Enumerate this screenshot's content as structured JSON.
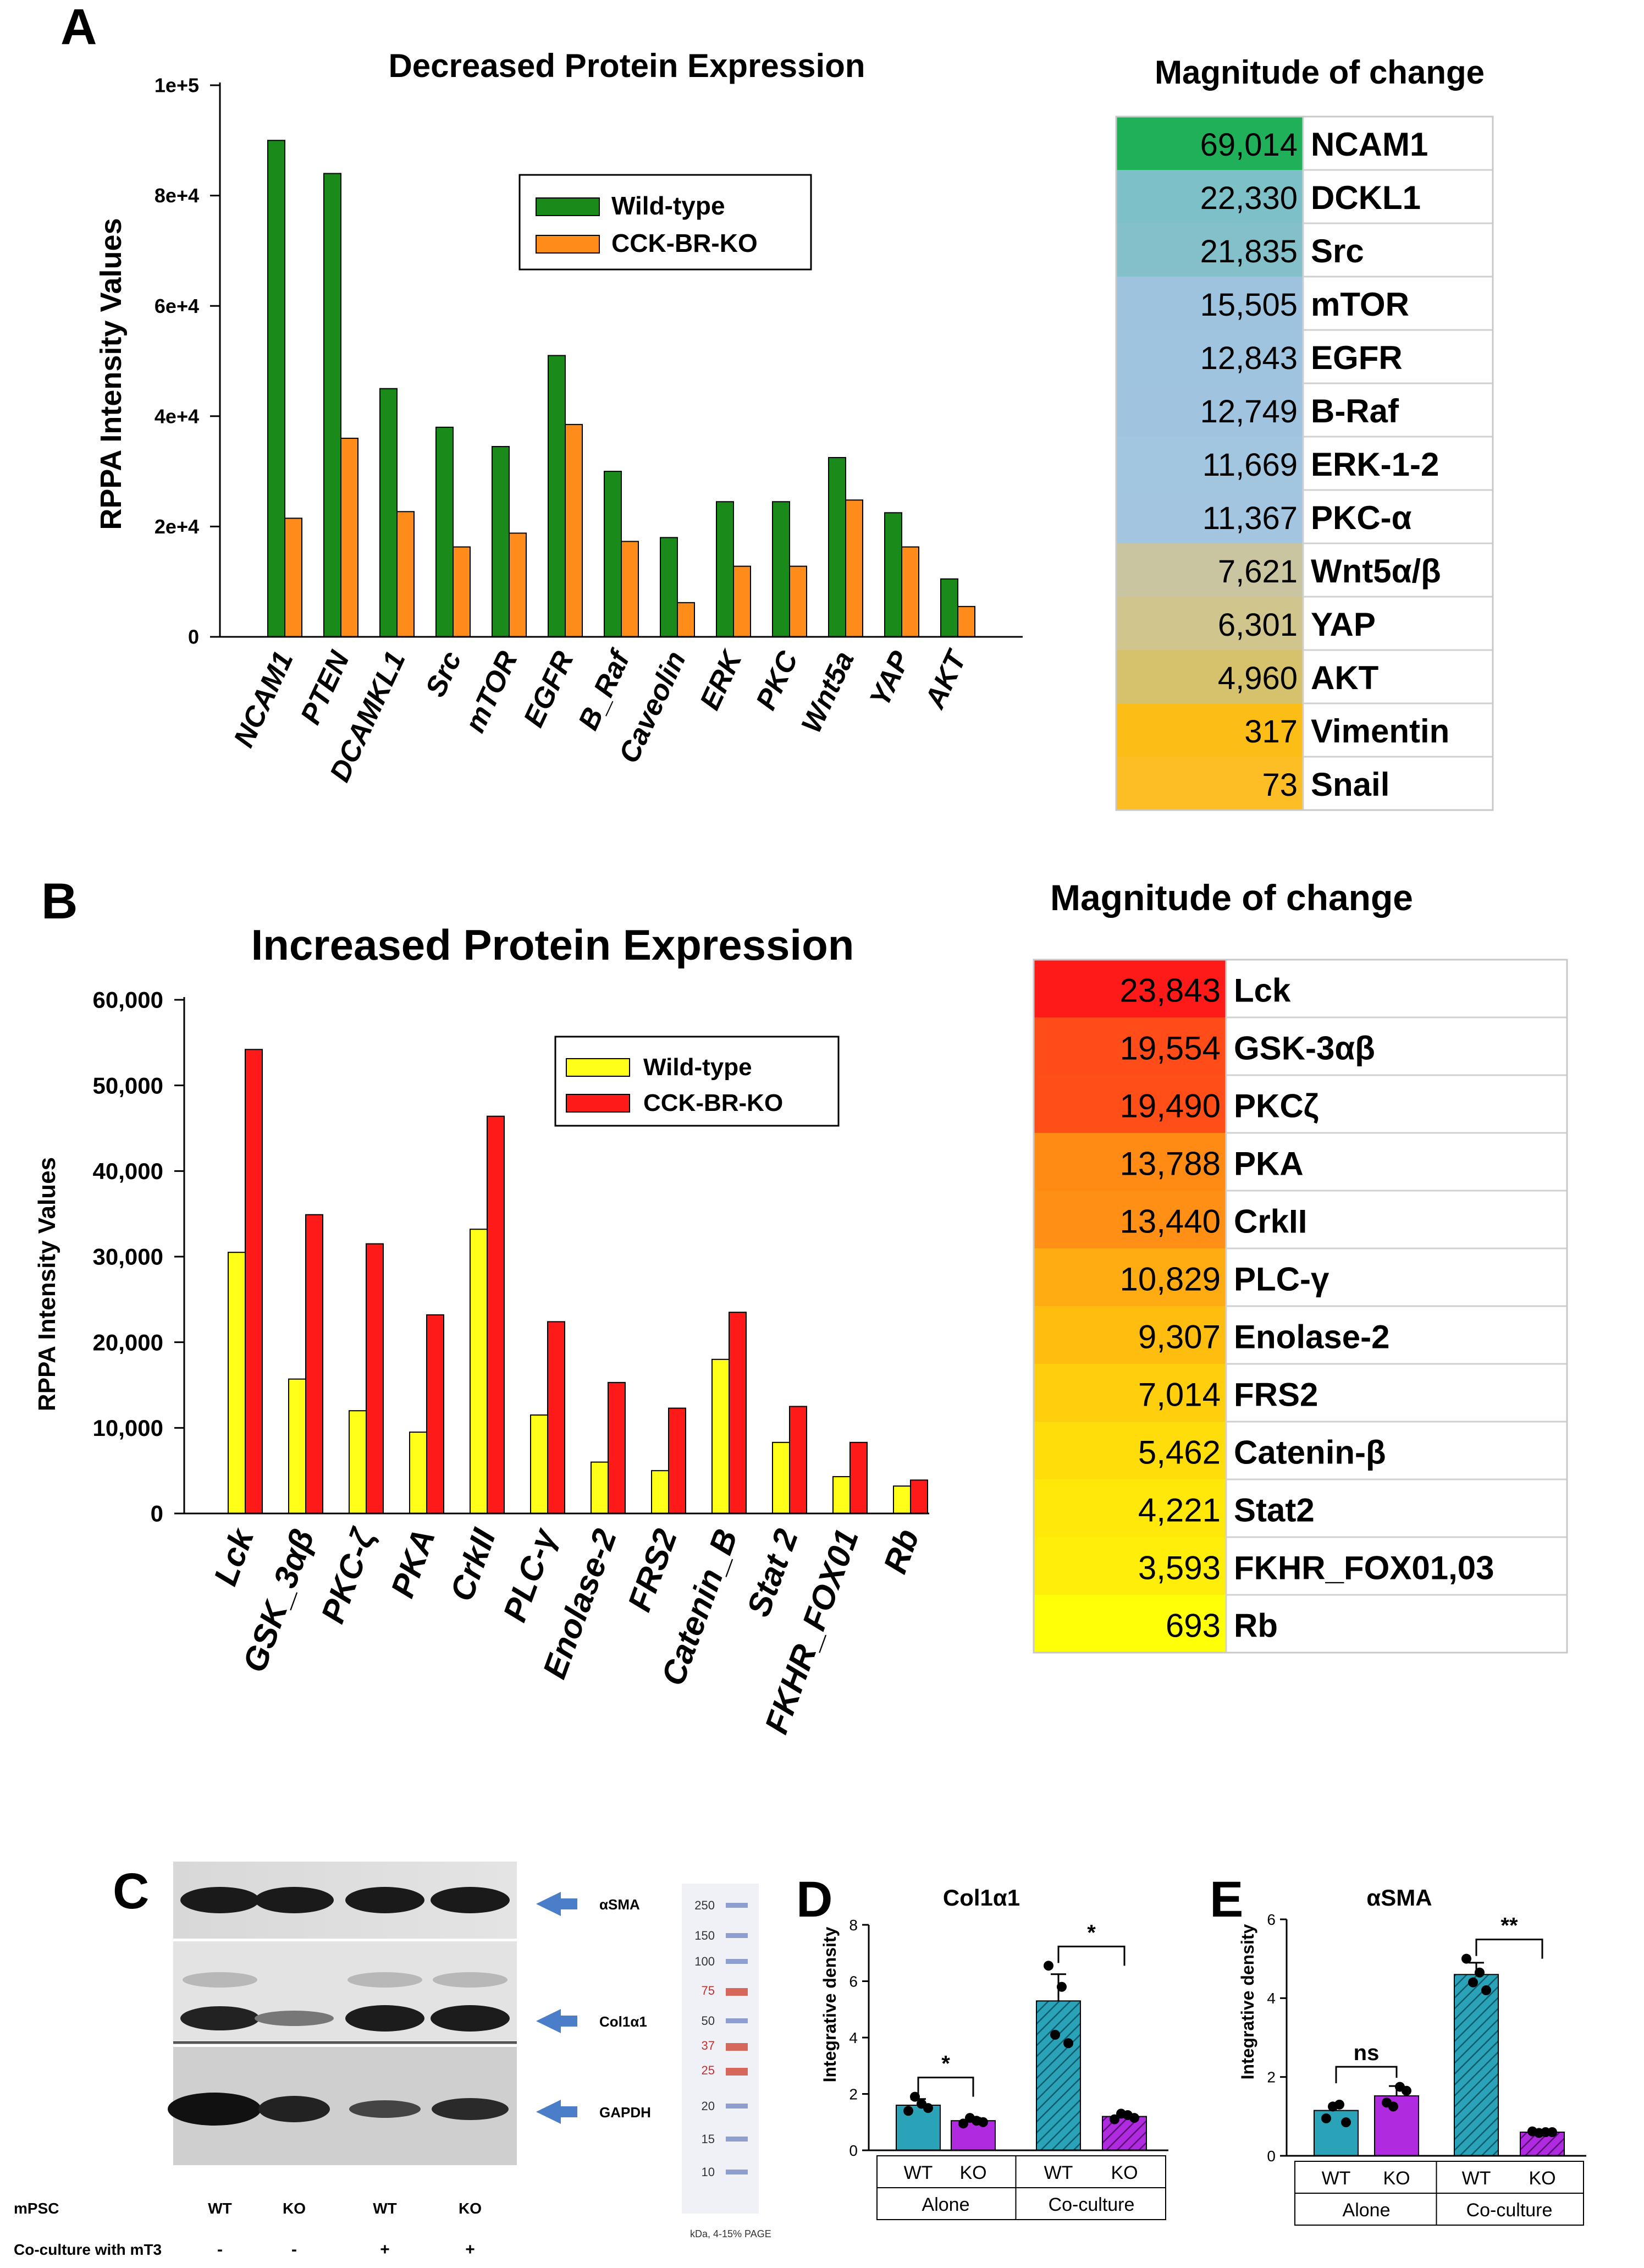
{
  "panels": {
    "a": "A",
    "b": "B",
    "c": "C",
    "d": "D",
    "e": "E"
  },
  "chart_data": [
    {
      "id": "A",
      "type": "bar",
      "title": "Decreased Protein Expression",
      "xlabel": "",
      "ylabel": "RPPA Intensity Values",
      "ylim": [
        0,
        100000
      ],
      "yticks": [
        "0",
        "2e+4",
        "4e+4",
        "6e+4",
        "8e+4",
        "1e+5"
      ],
      "ytick_values": [
        0,
        20000,
        40000,
        60000,
        80000,
        100000
      ],
      "legend_position": "top-right",
      "categories": [
        "NCAM1",
        "PTEN",
        "DCAMKL1",
        "Src",
        "mTOR",
        "EGFR",
        "B_Raf",
        "Caveolin",
        "ERK",
        "PKC",
        "Wnt5a",
        "YAP",
        "AKT"
      ],
      "series": [
        {
          "name": "Wild-type",
          "color": "#1a8a1a",
          "values": [
            90000,
            84000,
            45000,
            38000,
            34500,
            51000,
            30000,
            18000,
            24500,
            24500,
            32500,
            22500,
            10500
          ]
        },
        {
          "name": "CCK-BR-KO",
          "color": "#ff8c1a",
          "values": [
            21500,
            36000,
            22700,
            16300,
            18800,
            38500,
            17300,
            6200,
            12800,
            12800,
            24800,
            16300,
            5500
          ]
        }
      ]
    },
    {
      "id": "B",
      "type": "bar",
      "title": "Increased Protein Expression",
      "xlabel": "",
      "ylabel": "RPPA Intensity Values",
      "ylim": [
        0,
        60000
      ],
      "yticks": [
        "0",
        "10,000",
        "20,000",
        "30,000",
        "40,000",
        "50,000",
        "60,000"
      ],
      "ytick_values": [
        0,
        10000,
        20000,
        30000,
        40000,
        50000,
        60000
      ],
      "legend_position": "top-right",
      "categories": [
        "Lck",
        "GSK_3αβ",
        "PKC-ζ",
        "PKA",
        "CrkII",
        "PLC-γ",
        "Enolase-2",
        "FRS2",
        "Catenin_B",
        "Stat 2",
        "FKHR_FOX01",
        "Rb"
      ],
      "series": [
        {
          "name": "Wild-type",
          "color": "#ffff1a",
          "values": [
            30500,
            15700,
            12000,
            9500,
            33200,
            11500,
            6000,
            5000,
            18000,
            8300,
            4300,
            3200
          ]
        },
        {
          "name": "CCK-BR-KO",
          "color": "#ff1a1a",
          "values": [
            54200,
            34900,
            31500,
            23200,
            46400,
            22400,
            15300,
            12300,
            23500,
            12500,
            8300,
            3900
          ]
        }
      ]
    },
    {
      "id": "D",
      "type": "bar",
      "title": "Col1α1",
      "ylabel": "Integrative density",
      "ylim": [
        0,
        8
      ],
      "yticks": [
        "0",
        "2",
        "4",
        "6",
        "8"
      ],
      "ytick_values": [
        0,
        2,
        4,
        6,
        8
      ],
      "categories": [
        "WT",
        "KO",
        "WT",
        "KO"
      ],
      "groups": [
        "Alone",
        "Co-culture"
      ],
      "values": [
        1.6,
        1.05,
        5.3,
        1.2
      ],
      "errors": [
        0.22,
        0.1,
        0.95,
        0.1
      ],
      "points": [
        [
          1.4,
          1.65,
          1.9,
          1.5
        ],
        [
          0.95,
          1.05,
          1.15,
          1.0
        ],
        [
          6.55,
          5.8,
          4.1,
          3.8
        ],
        [
          1.1,
          1.25,
          1.3,
          1.15
        ]
      ],
      "colors": [
        "#2aa3b8",
        "#b02ae0",
        "#2aa3b8",
        "#b02ae0"
      ],
      "hatched": [
        false,
        false,
        true,
        true
      ],
      "significance": [
        {
          "pair": [
            0,
            1
          ],
          "label": "*"
        },
        {
          "pair": [
            2,
            3
          ],
          "label": "*"
        }
      ]
    },
    {
      "id": "E",
      "type": "bar",
      "title": "αSMA",
      "ylabel": "Integrative density",
      "ylim": [
        0,
        6
      ],
      "yticks": [
        "0",
        "2",
        "4",
        "6"
      ],
      "ytick_values": [
        0,
        2,
        4,
        6
      ],
      "categories": [
        "WT",
        "KO",
        "WT",
        "KO"
      ],
      "groups": [
        "Alone",
        "Co-culture"
      ],
      "values": [
        1.15,
        1.52,
        4.6,
        0.6
      ],
      "errors": [
        0.15,
        0.25,
        0.3,
        0.05
      ],
      "points": [
        [
          0.95,
          1.3,
          1.25,
          0.85
        ],
        [
          1.35,
          1.75,
          1.25,
          1.65
        ],
        [
          5.0,
          4.65,
          4.4,
          4.2
        ],
        [
          0.62,
          0.6,
          0.58,
          0.6
        ]
      ],
      "colors": [
        "#2aa3b8",
        "#b02ae0",
        "#2aa3b8",
        "#b02ae0"
      ],
      "hatched": [
        false,
        false,
        true,
        true
      ],
      "significance": [
        {
          "pair": [
            0,
            1
          ],
          "label": "ns"
        },
        {
          "pair": [
            2,
            3
          ],
          "label": "**"
        }
      ]
    }
  ],
  "magnitude_tables": {
    "a": {
      "title": "Magnitude of change",
      "rows": [
        {
          "value": "69,014",
          "label": "NCAM1",
          "color": "#21b05a"
        },
        {
          "value": "22,330",
          "label": "DCKL1",
          "color": "#7ec0c8"
        },
        {
          "value": "21,835",
          "label": "Src",
          "color": "#83c0ca"
        },
        {
          "value": "15,505",
          "label": "mTOR",
          "color": "#9dc3df"
        },
        {
          "value": "12,843",
          "label": "EGFR",
          "color": "#9fc4e0"
        },
        {
          "value": "12,749",
          "label": "B-Raf",
          "color": "#a0c4e0"
        },
        {
          "value": "11,669",
          "label": "ERK-1-2",
          "color": "#a2c5e0"
        },
        {
          "value": "11,367",
          "label": "PKC-α",
          "color": "#a3c5e0"
        },
        {
          "value": "7,621",
          "label": "Wnt5α/β",
          "color": "#c9c5a0"
        },
        {
          "value": "6,301",
          "label": "YAP",
          "color": "#cfc58d"
        },
        {
          "value": "4,960",
          "label": "AKT",
          "color": "#d6c26c"
        },
        {
          "value": "317",
          "label": "Vimentin",
          "color": "#fdbd17"
        },
        {
          "value": "73",
          "label": "Snail",
          "color": "#fdbe25"
        }
      ]
    },
    "b": {
      "title": "Magnitude of change",
      "rows": [
        {
          "value": "23,843",
          "label": "Lck",
          "color": "#ff1a1a"
        },
        {
          "value": "19,554",
          "label": "GSK-3αβ",
          "color": "#ff4c18"
        },
        {
          "value": "19,490",
          "label": "PKCζ",
          "color": "#ff4e18"
        },
        {
          "value": "13,788",
          "label": "PKA",
          "color": "#ff8b15"
        },
        {
          "value": "13,440",
          "label": "CrkII",
          "color": "#ff8f15"
        },
        {
          "value": "10,829",
          "label": "PLC-γ",
          "color": "#ffac12"
        },
        {
          "value": "9,307",
          "label": "Enolase-2",
          "color": "#ffbd10"
        },
        {
          "value": "7,014",
          "label": "FRS2",
          "color": "#ffcf0d"
        },
        {
          "value": "5,462",
          "label": "Catenin-β",
          "color": "#ffdd0b"
        },
        {
          "value": "4,221",
          "label": "Stat2",
          "color": "#ffe80a"
        },
        {
          "value": "3,593",
          "label": "FKHR_FOX01,03",
          "color": "#ffee09"
        },
        {
          "value": "693",
          "label": "Rb",
          "color": "#ffff08"
        }
      ]
    }
  },
  "blot": {
    "bands": [
      "αSMA",
      "Col1α1",
      "GAPDH"
    ],
    "mpsc_label": "mPSC",
    "mpsc_values": [
      "WT",
      "KO",
      "WT",
      "KO"
    ],
    "coculture_label": "Co-culture with mT3",
    "coculture_values": [
      "-",
      "-",
      "+",
      "+"
    ],
    "ladder_marks": [
      "250",
      "150",
      "100",
      "75",
      "50",
      "37",
      "25",
      "20",
      "15",
      "10"
    ],
    "ladder_caption": "kDa, 4-15% PAGE"
  }
}
